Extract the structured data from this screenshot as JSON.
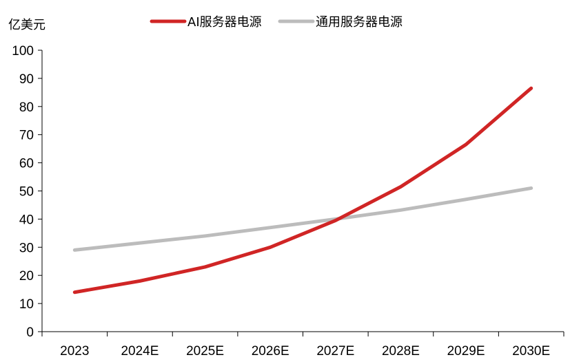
{
  "chart_data": {
    "type": "line",
    "title": "",
    "xlabel": "",
    "ylabel": "亿美元",
    "categories": [
      "2023",
      "2024E",
      "2025E",
      "2026E",
      "2027E",
      "2028E",
      "2029E",
      "2030E"
    ],
    "ylim": [
      0,
      100
    ],
    "yticks": [
      0,
      10,
      20,
      30,
      40,
      50,
      60,
      70,
      80,
      90,
      100
    ],
    "grid": false,
    "legend_position": "top",
    "series": [
      {
        "name": "AI服务器电源",
        "color": "#d02525",
        "values": [
          14,
          18,
          23,
          30,
          39.5,
          51.5,
          66.5,
          86.5
        ]
      },
      {
        "name": "通用服务器电源",
        "color": "#bcbcbc",
        "values": [
          29,
          31.5,
          34,
          37,
          40,
          43.2,
          47,
          51
        ]
      }
    ]
  }
}
